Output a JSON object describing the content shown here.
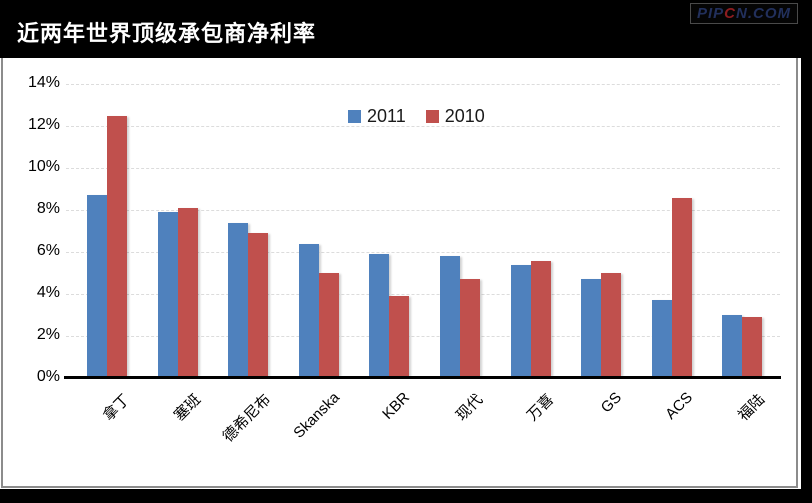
{
  "header": {
    "title": "近两年世界顶级承包商净利率",
    "logo": {
      "pre": "PIP",
      "c": "C",
      "post": "N.COM"
    }
  },
  "chart_data": {
    "type": "bar",
    "title": "近两年世界顶级承包商净利率",
    "categories": [
      "拿丁",
      "塞班",
      "德希尼布",
      "Skanska",
      "KBR",
      "现代",
      "万喜",
      "GS",
      "ACS",
      "福陆"
    ],
    "series": [
      {
        "name": "2011",
        "color": "#4F81BD",
        "values": [
          8.6,
          7.8,
          7.3,
          6.3,
          5.8,
          5.7,
          5.3,
          4.6,
          3.6,
          2.9
        ]
      },
      {
        "name": "2010",
        "color": "#C0504D",
        "values": [
          12.4,
          8.0,
          6.8,
          4.9,
          3.8,
          4.6,
          5.5,
          4.9,
          8.5,
          2.8
        ]
      }
    ],
    "xlabel": "",
    "ylabel": "",
    "ylim": [
      0,
      14
    ],
    "ytick_step": 2,
    "yticks": [
      "0%",
      "2%",
      "4%",
      "6%",
      "8%",
      "10%",
      "12%",
      "14%"
    ],
    "grid": "horizontal-dashed",
    "legend_position": "top-center-inside",
    "colors": {
      "axis": "#000000",
      "gridline": "#dcdcdc",
      "panel_border": "#8c8c8c",
      "frame": "#000000"
    }
  }
}
